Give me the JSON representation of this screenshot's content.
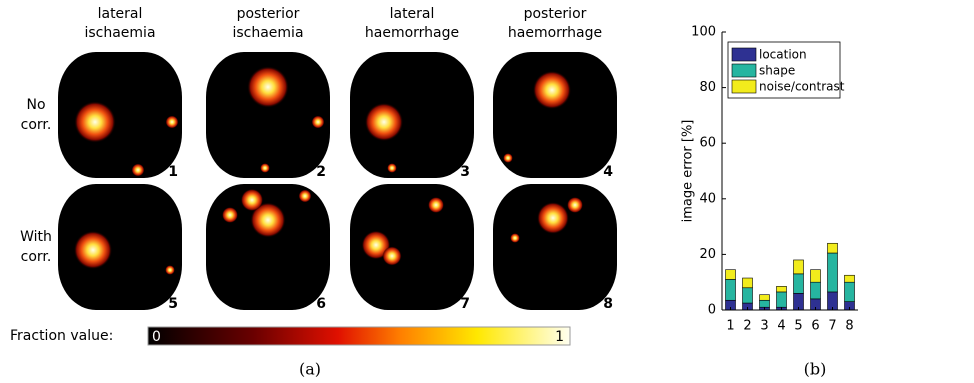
{
  "panel_a": {
    "column_headers": [
      [
        "lateral",
        "ischaemia"
      ],
      [
        "posterior",
        "ischaemia"
      ],
      [
        "lateral",
        "haemorrhage"
      ],
      [
        "posterior",
        "haemorrhage"
      ]
    ],
    "row_labels": [
      [
        "No",
        "corr."
      ],
      [
        "With",
        "corr."
      ]
    ],
    "image_numbers": [
      "1",
      "2",
      "3",
      "4",
      "5",
      "6",
      "7",
      "8"
    ],
    "colorbar_label": "Fraction value:",
    "colorbar_min": "0",
    "colorbar_max": "1",
    "caption": "(a)"
  },
  "chart_data": {
    "type": "stacked_bar",
    "ylabel": "image error [%]",
    "categories": [
      "1",
      "2",
      "3",
      "4",
      "5",
      "6",
      "7",
      "8"
    ],
    "series": [
      {
        "name": "location",
        "color": "#2e3192",
        "values": [
          3.5,
          2.5,
          1,
          1,
          6,
          4,
          6.5,
          3
        ]
      },
      {
        "name": "shape",
        "color": "#26b5a0",
        "values": [
          7.5,
          5.5,
          2.5,
          5.5,
          7,
          6,
          14,
          7
        ]
      },
      {
        "name": "noise/contrast",
        "color": "#f2ec1c",
        "values": [
          3.5,
          3.5,
          2,
          2,
          5,
          4.5,
          3.5,
          2.5
        ]
      }
    ],
    "ylim": [
      0,
      100
    ],
    "yticks": [
      0,
      20,
      40,
      60,
      80,
      100
    ],
    "legend": "upper left",
    "caption": "(b)"
  }
}
